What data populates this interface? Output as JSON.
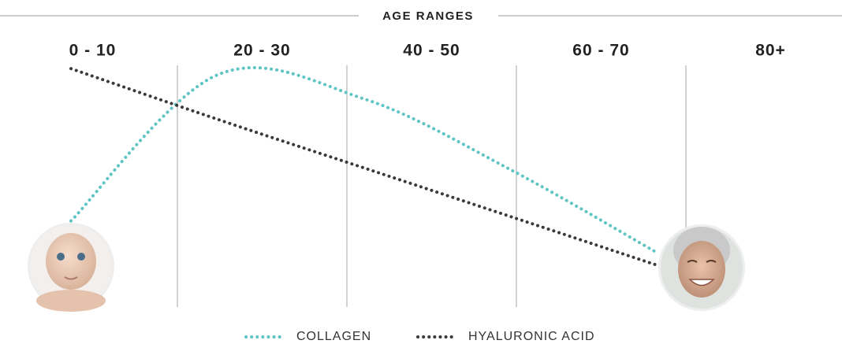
{
  "chart_data": {
    "type": "line",
    "title": "AGE RANGES",
    "categories": [
      "0 - 10",
      "20 - 30",
      "40 - 50",
      "60 - 70",
      "80+"
    ],
    "ylim": [
      0,
      100
    ],
    "series": [
      {
        "name": "COLLAGEN",
        "color": "#5ec4c4",
        "values": [
          23,
          95,
          83,
          48,
          7
        ]
      },
      {
        "name": "HYALURONIC ACID",
        "color": "#3a3a3a",
        "values": [
          98,
          73,
          49,
          25,
          1
        ]
      }
    ]
  }
}
